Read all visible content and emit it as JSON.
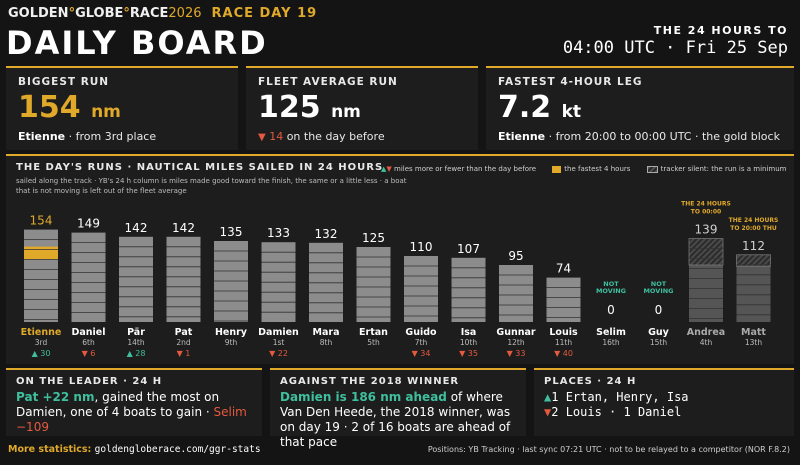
{
  "header": {
    "brand_a": "GOLDEN",
    "brand_b": "GLOBE",
    "brand_c": "RACE",
    "year": "2026",
    "race_day": "RACE DAY 19",
    "title": "DAILY BOARD",
    "hours_label": "THE 24 HOURS TO",
    "hours_time": "04:00 UTC · Fri 25 Sep"
  },
  "cards": {
    "biggest": {
      "label": "BIGGEST RUN",
      "value": "154",
      "unit": "nm",
      "who": "Etienne",
      "detail": " · from 3rd place"
    },
    "fleet": {
      "label": "FLEET AVERAGE RUN",
      "value": "125",
      "unit": "nm",
      "delta": "14",
      "detail": "on the day before"
    },
    "fastest": {
      "label": "FASTEST 4-HOUR LEG",
      "value": "7.2",
      "unit": "kt",
      "who": "Etienne",
      "detail": " · from 20:00 to 00:00 UTC · the gold block"
    }
  },
  "runs": {
    "title": "THE DAY'S RUNS · NAUTICAL MILES SAILED IN 24 HOURS",
    "note": "sailed along the track · YB's 24 h column is miles made good toward the finish, the same or a little less · a boat that is not moving is left out of the fleet average",
    "legend_change": "miles more or fewer than the day before",
    "legend_gold": "the fastest 4 hours",
    "legend_hatch": "tracker silent: the run is a minimum",
    "not_moving": "NOT MOVING",
    "note_andrea_1": "THE 24 HOURS",
    "note_andrea_2": "TO 00:00",
    "note_matt_1": "THE 24 HOURS",
    "note_matt_2": "TO 20:00 THU"
  },
  "chart_data": {
    "type": "bar",
    "title": "THE DAY'S RUNS · NAUTICAL MILES SAILED IN 24 HOURS",
    "ylim": [
      0,
      160
    ],
    "categories": [
      "Etienne",
      "Daniel",
      "Pär",
      "Pat",
      "Henry",
      "Damien",
      "Mara",
      "Ertan",
      "Guido",
      "Isa",
      "Gunnar",
      "Louis",
      "Selim",
      "Guy",
      "Andrea",
      "Matt"
    ],
    "places": [
      "3rd",
      "6th",
      "14th",
      "2nd",
      "9th",
      "1st",
      "8th",
      "5th",
      "7th",
      "10th",
      "12th",
      "11th",
      "16th",
      "15th",
      "4th",
      "13th"
    ],
    "values": [
      154,
      149,
      142,
      142,
      135,
      133,
      132,
      125,
      110,
      107,
      95,
      74,
      0,
      0,
      139,
      112
    ],
    "changes": [
      "▲ 30",
      "▼ 6",
      "▲ 28",
      "▼ 1",
      "",
      "▼ 22",
      "",
      "",
      "▼ 34",
      "▼ 35",
      "▼ 33",
      "▼ 40",
      "",
      "",
      "",
      ""
    ],
    "change_dir": [
      "up",
      "down",
      "up",
      "down",
      "",
      "down",
      "",
      "",
      "down",
      "down",
      "down",
      "down",
      "",
      "",
      "",
      ""
    ],
    "highlight": "Etienne",
    "fastest_block_nm": 29,
    "not_moving": [
      "Selim",
      "Guy"
    ],
    "tracker_silent": [
      "Andrea",
      "Matt"
    ],
    "tracker_silent_hatch_nm": [
      44,
      19
    ],
    "colors": {
      "accent": "#e0a92a",
      "bar": "#8c8c8c",
      "bar_dim": "#555555",
      "up": "#3fbf9e",
      "down": "#e4593f"
    }
  },
  "leader": {
    "label": "ON THE LEADER · 24 H",
    "hl": "Pat +22 nm",
    "text1": ", gained the most on Damien, one of 4 boats to gain · ",
    "selim": "Selim −109"
  },
  "winner": {
    "label": "AGAINST THE 2018 WINNER",
    "hl": "Damien is 186 nm ahead",
    "text": " of where Van Den Heede, the 2018 winner, was on day 19 · 2 of 16 boats are ahead of that pace"
  },
  "places": {
    "label": "PLACES · 24 H",
    "up_count": "1",
    "up_text": " Ertan, Henry, Isa",
    "down_count": "2",
    "down_text": " Louis · 1 Daniel"
  },
  "footer": {
    "label": "More statistics:",
    "url": "goldengloberace.com/ggr-stats",
    "right": "Positions: YB Tracking · last sync 07:21 UTC · not to be relayed to a competitor (NOR F.8.2)"
  }
}
